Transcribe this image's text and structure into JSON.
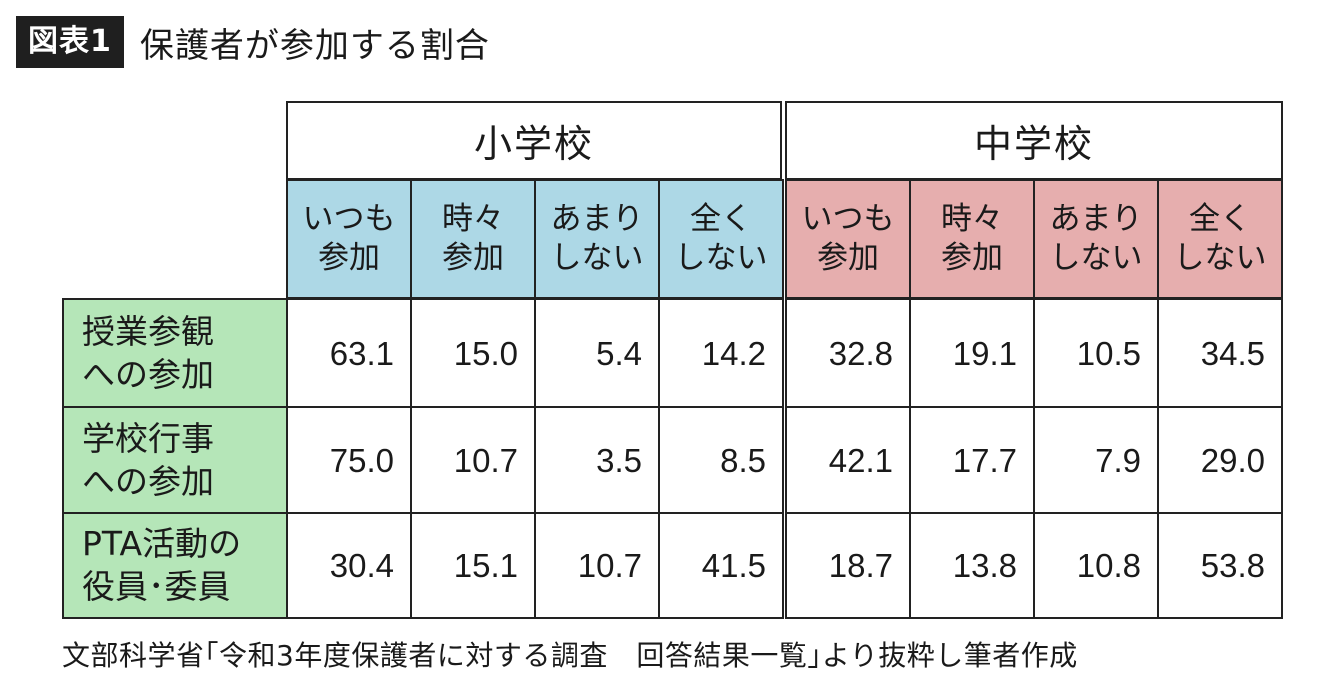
{
  "figure": {
    "label": "図表1",
    "title": "保護者が参加する割合"
  },
  "table": {
    "groups": [
      "小学校",
      "中学校"
    ],
    "subheaders": [
      "いつも\n参加",
      "時々\n参加",
      "あまり\nしない",
      "全く\nしない"
    ],
    "rows": [
      {
        "label": "授業参観\nへの参加",
        "elementary": [
          "63.1",
          "15.0",
          "5.4",
          "14.2"
        ],
        "middle": [
          "32.8",
          "19.1",
          "10.5",
          "34.5"
        ]
      },
      {
        "label": "学校行事\nへの参加",
        "elementary": [
          "75.0",
          "10.7",
          "3.5",
          "8.5"
        ],
        "middle": [
          "42.1",
          "17.7",
          "7.9",
          "29.0"
        ]
      },
      {
        "label": "PTA活動の\n役員･委員",
        "elementary": [
          "30.4",
          "15.1",
          "10.7",
          "41.5"
        ],
        "middle": [
          "18.7",
          "13.8",
          "10.8",
          "53.8"
        ]
      }
    ]
  },
  "source": "文部科学省｢令和3年度保護者に対する調査　回答結果一覧｣より抜粋し筆者作成",
  "colors": {
    "elementary_header": "#add8e6",
    "middle_header": "#e6aeae",
    "row_header": "#b5e6b8"
  }
}
